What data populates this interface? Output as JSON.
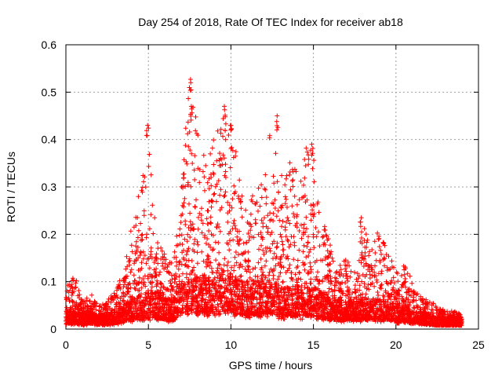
{
  "chart_data": {
    "type": "scatter",
    "title": "Day 254 of 2018, Rate Of TEC Index for receiver ab18",
    "xlabel": "GPS time / hours",
    "ylabel": "ROTI / TECUs",
    "xlim": [
      0,
      25
    ],
    "ylim": [
      0,
      0.6
    ],
    "xticks": [
      "0",
      "5",
      "10",
      "15",
      "20",
      "25"
    ],
    "yticks": [
      "0",
      "0.1",
      "0.2",
      "0.3",
      "0.4",
      "0.5",
      "0.6"
    ],
    "grid": true,
    "marker": "+",
    "color": "#ff0000",
    "series": [
      {
        "name": "ROTI",
        "envelope_x": [
          0,
          0.5,
          1,
          1.5,
          2,
          2.5,
          3,
          3.5,
          4,
          4.5,
          5,
          5.5,
          6,
          6.5,
          7,
          7.5,
          8,
          8.5,
          9,
          9.5,
          10,
          10.5,
          11,
          11.5,
          12,
          12.5,
          13,
          13.5,
          14,
          14.5,
          15,
          15.5,
          16,
          16.5,
          17,
          17.5,
          18,
          18.5,
          19,
          19.5,
          20,
          20.5,
          21,
          21.5,
          22,
          22.5,
          23,
          23.5,
          24
        ],
        "envelope_y": [
          0.1,
          0.12,
          0.06,
          0.08,
          0.05,
          0.06,
          0.09,
          0.12,
          0.22,
          0.3,
          0.43,
          0.19,
          0.16,
          0.14,
          0.31,
          0.53,
          0.42,
          0.36,
          0.41,
          0.47,
          0.43,
          0.34,
          0.25,
          0.3,
          0.34,
          0.45,
          0.33,
          0.36,
          0.34,
          0.39,
          0.39,
          0.24,
          0.18,
          0.13,
          0.15,
          0.12,
          0.24,
          0.18,
          0.21,
          0.18,
          0.12,
          0.14,
          0.1,
          0.07,
          0.06,
          0.05,
          0.04,
          0.04,
          0.03
        ],
        "baseline_y": [
          0.03,
          0.03,
          0.025,
          0.03,
          0.025,
          0.025,
          0.03,
          0.04,
          0.05,
          0.06,
          0.06,
          0.06,
          0.05,
          0.05,
          0.08,
          0.1,
          0.09,
          0.09,
          0.09,
          0.1,
          0.09,
          0.08,
          0.07,
          0.08,
          0.08,
          0.08,
          0.07,
          0.07,
          0.07,
          0.07,
          0.07,
          0.06,
          0.05,
          0.05,
          0.05,
          0.05,
          0.05,
          0.05,
          0.05,
          0.05,
          0.04,
          0.04,
          0.03,
          0.03,
          0.025,
          0.02,
          0.02,
          0.02,
          0.02
        ],
        "peaks": [
          {
            "x": 4.95,
            "y": 0.43
          },
          {
            "x": 7.55,
            "y": 0.527
          },
          {
            "x": 7.6,
            "y": 0.47
          },
          {
            "x": 9.6,
            "y": 0.47
          },
          {
            "x": 10.0,
            "y": 0.43
          },
          {
            "x": 12.8,
            "y": 0.45
          },
          {
            "x": 14.9,
            "y": 0.39
          },
          {
            "x": 17.9,
            "y": 0.235
          }
        ]
      }
    ]
  }
}
